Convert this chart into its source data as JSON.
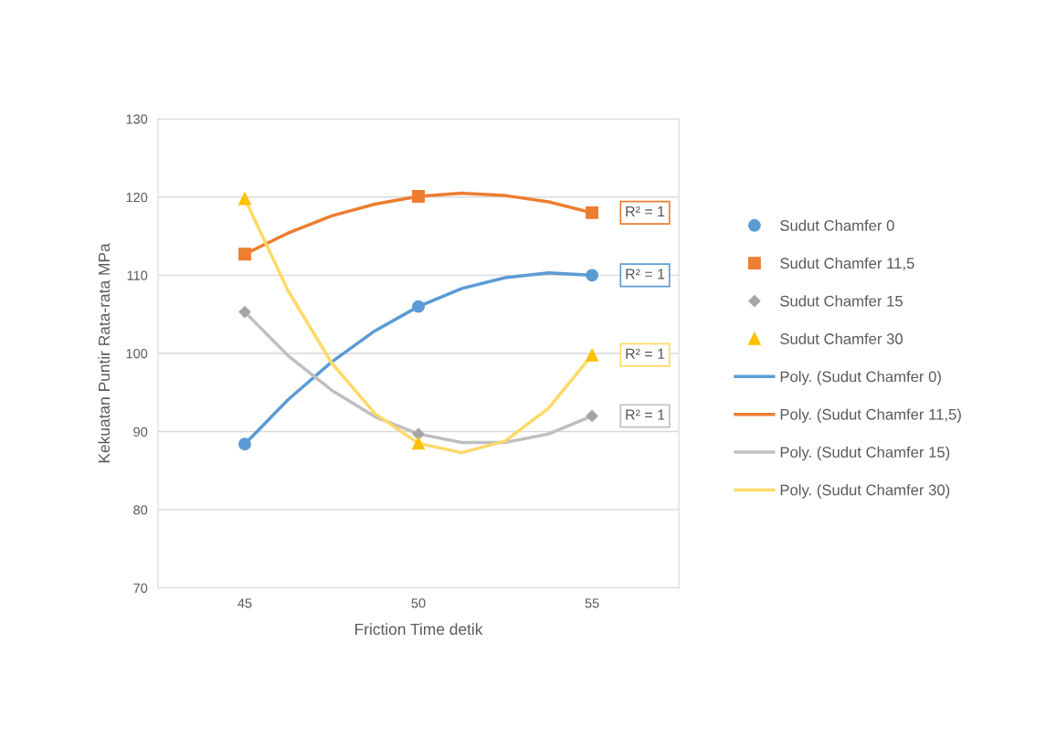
{
  "chart_data": {
    "type": "scatter",
    "xlabel": "Friction Time detik",
    "ylabel": "Kekuatan Puntir Rata-rata MPa",
    "x": [
      45,
      50,
      55
    ],
    "xlim": [
      42.5,
      57.5
    ],
    "xticks": [
      45,
      50,
      55
    ],
    "ylim": [
      70,
      130
    ],
    "yticks": [
      70,
      80,
      90,
      100,
      110,
      120,
      130
    ],
    "grid": "y",
    "legend": "right",
    "series": [
      {
        "name": "Sudut Chamfer 0",
        "marker": "circle",
        "color": "#5b9bd5",
        "values": [
          88.4,
          106.0,
          110.0
        ]
      },
      {
        "name": "Sudut Chamfer 11,5",
        "marker": "square",
        "color": "#ed7d31",
        "values": [
          112.7,
          120.1,
          118.0
        ]
      },
      {
        "name": "Sudut Chamfer 15",
        "marker": "diamond",
        "color": "#a5a5a5",
        "values": [
          105.3,
          89.7,
          92.0
        ]
      },
      {
        "name": "Sudut Chamfer 30",
        "marker": "triangle",
        "color": "#ffc000",
        "values": [
          119.8,
          88.5,
          99.8
        ]
      },
      {
        "name": "Poly. (Sudut Chamfer 0)",
        "type": "line",
        "line_style": "solid",
        "color": "#5b9bd5",
        "x": [
          45,
          46.25,
          47.5,
          48.75,
          50,
          51.25,
          52.5,
          53.75,
          55
        ],
        "values": [
          88.4,
          94.1,
          98.9,
          102.9,
          106.0,
          108.3,
          109.7,
          110.3,
          110.0
        ]
      },
      {
        "name": "Poly. (Sudut Chamfer 11,5)",
        "type": "line",
        "line_style": "solid",
        "color": "#ed7d31",
        "x": [
          45,
          46.25,
          47.5,
          48.75,
          50,
          51.25,
          52.5,
          53.75,
          55
        ],
        "values": [
          112.7,
          115.4,
          117.6,
          119.1,
          120.1,
          120.5,
          120.2,
          119.4,
          118.0
        ]
      },
      {
        "name": "Poly. (Sudut Chamfer 15)",
        "type": "line",
        "line_style": "solid",
        "color": "#bfbfbf",
        "x": [
          45,
          46.25,
          47.5,
          48.75,
          50,
          51.25,
          52.5,
          53.75,
          55
        ],
        "values": [
          105.3,
          99.7,
          95.3,
          91.9,
          89.7,
          88.6,
          88.6,
          89.7,
          92.0
        ]
      },
      {
        "name": "Poly. (Sudut Chamfer 30)",
        "type": "line",
        "line_style": "solid",
        "color": "#ffd966",
        "x": [
          45,
          46.25,
          47.5,
          48.75,
          50,
          51.25,
          52.5,
          53.75,
          55
        ],
        "values": [
          119.8,
          108.0,
          98.8,
          92.3,
          88.5,
          87.3,
          88.8,
          93.0,
          99.8
        ]
      }
    ],
    "annotations": [
      "R² = 1",
      "R² = 1",
      "R² = 1",
      "R² = 1"
    ]
  }
}
